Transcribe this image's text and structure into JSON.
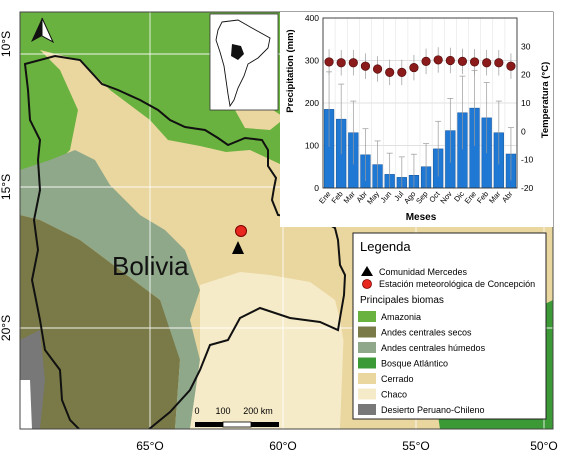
{
  "map": {
    "country_label": "Bolivia",
    "lat_labels": [
      "10°S",
      "15°S",
      "20°S"
    ],
    "lon_labels": [
      "65°O",
      "60°O",
      "55°O",
      "50°O"
    ],
    "north_arrow_icon": "north-arrow-icon",
    "scale_bar": {
      "labels": [
        "0",
        "100",
        "200 km"
      ]
    }
  },
  "legend": {
    "title": "Legenda",
    "points": [
      {
        "label": "Comunidad Mercedes",
        "icon": "triangle-icon",
        "color": "#000000"
      },
      {
        "label": "Estación meteorológica de Concepción",
        "icon": "circle-icon",
        "color": "#e8281e"
      }
    ],
    "biomes_title": "Principales biomas",
    "biomes": [
      {
        "label": "Amazonia",
        "color": "#6ab23f"
      },
      {
        "label": "Andes centrales secos",
        "color": "#7a7a48"
      },
      {
        "label": "Andes centrales húmedos",
        "color": "#8fa88a"
      },
      {
        "label": "Bosque Atlántico",
        "color": "#3c9a36"
      },
      {
        "label": "Cerrado",
        "color": "#ead7a0"
      },
      {
        "label": "Chaco",
        "color": "#f6ebc9"
      },
      {
        "label": "Desierto Peruano-Chileno",
        "color": "#787878"
      }
    ]
  },
  "chart_data": {
    "type": "bar",
    "categories": [
      "Ene",
      "Feb",
      "Mar",
      "Abr",
      "May",
      "Jun",
      "Jul",
      "Ago",
      "Sep",
      "Oct",
      "Nov",
      "Dic",
      "Ene",
      "Feb",
      "Mar",
      "Abr"
    ],
    "xlabel": "Meses",
    "ylabel": "Precipitation (mm)",
    "y2label": "Temperatura (°C)",
    "ylim": [
      0,
      400
    ],
    "y2lim": [
      -20,
      40
    ],
    "yticks": [
      0,
      100,
      200,
      300,
      400
    ],
    "y2ticks": [
      -20,
      -10,
      0,
      10,
      20,
      30
    ],
    "grid": true,
    "series": [
      {
        "type": "bar",
        "color": "#1f78d4",
        "values": [
          185,
          162,
          130,
          78,
          55,
          32,
          25,
          30,
          50,
          92,
          135,
          177,
          188,
          165,
          130,
          80
        ]
      },
      {
        "type": "point",
        "color": "#8b1a1a",
        "axis": "y2",
        "values": [
          24.5,
          24.2,
          24.2,
          23,
          22,
          20.8,
          20.8,
          22.5,
          24.7,
          25.2,
          25,
          24.7,
          24.5,
          24.2,
          24.2,
          23
        ]
      }
    ]
  }
}
